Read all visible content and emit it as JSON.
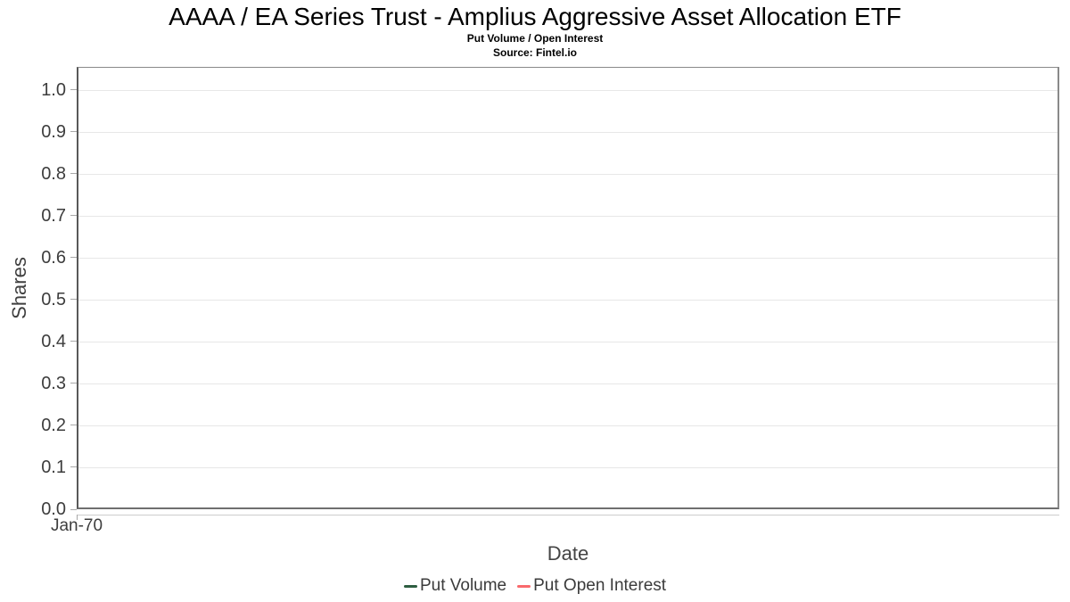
{
  "chart_data": {
    "type": "line",
    "title": "AAAA / EA Series Trust - Amplius Aggressive Asset Allocation ETF",
    "subtitle": "Put Volume / Open Interest",
    "source": "Source: Fintel.io",
    "xlabel": "Date",
    "ylabel": "Shares",
    "ylim": [
      0.0,
      1.055
    ],
    "yticks": [
      "0.0",
      "0.1",
      "0.2",
      "0.3",
      "0.4",
      "0.5",
      "0.6",
      "0.7",
      "0.8",
      "0.9",
      "1.0"
    ],
    "xticks": [
      "Jan-70"
    ],
    "grid": "horizontal",
    "legend_position": "bottom",
    "series": [
      {
        "name": "Put Volume",
        "color": "#2e5e41",
        "x": [],
        "values": []
      },
      {
        "name": "Put Open Interest",
        "color": "#f9696c",
        "x": [],
        "values": []
      }
    ]
  }
}
